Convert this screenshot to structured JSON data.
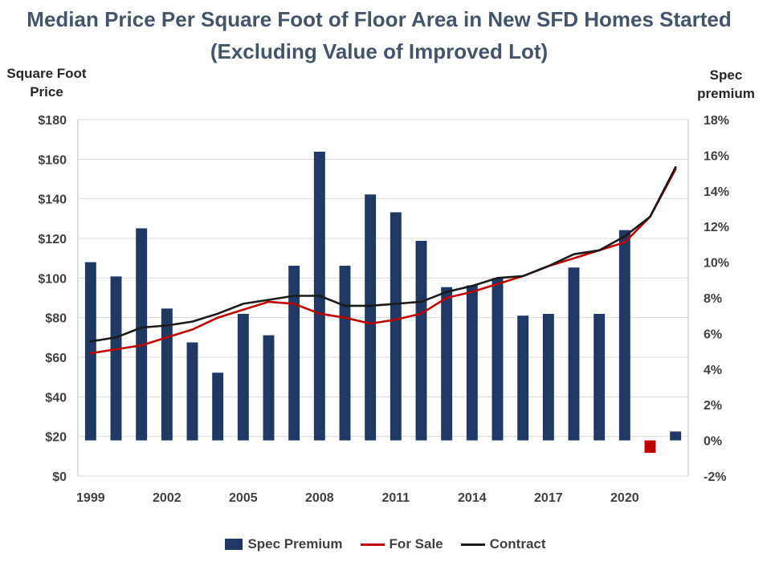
{
  "chart_data": {
    "type": "bar+line",
    "title": "Median Price Per Square Foot of Floor Area in New SFD Homes Started (Excluding Value of Improved Lot)",
    "ylabel_left": "Square Foot Price",
    "ylabel_right": "Spec premium",
    "years": [
      1999,
      2000,
      2001,
      2002,
      2003,
      2004,
      2005,
      2006,
      2007,
      2008,
      2009,
      2010,
      2011,
      2012,
      2013,
      2014,
      2015,
      2016,
      2017,
      2018,
      2019,
      2020,
      2021,
      2022
    ],
    "x_tick_labels": [
      "1999",
      "2002",
      "2005",
      "2008",
      "2011",
      "2014",
      "2017",
      "2020"
    ],
    "y_left": {
      "min": 0,
      "max": 180,
      "step": 20,
      "tick_labels": [
        "$0",
        "$20",
        "$40",
        "$60",
        "$80",
        "$100",
        "$120",
        "$140",
        "$160",
        "$180"
      ]
    },
    "y_right": {
      "min": -2,
      "max": 18,
      "step": 2,
      "tick_labels": [
        "-2%",
        "0%",
        "2%",
        "4%",
        "6%",
        "8%",
        "10%",
        "12%",
        "14%",
        "16%",
        "18%"
      ]
    },
    "gridlines": true,
    "legend_position": "bottom",
    "series": [
      {
        "name": "Spec Premium",
        "type": "bar",
        "axis": "right",
        "color": "#1f3864",
        "negative_color": "#c00000",
        "values": [
          10.0,
          9.2,
          11.9,
          7.4,
          5.5,
          3.8,
          7.1,
          5.9,
          9.8,
          16.2,
          9.8,
          13.8,
          12.8,
          11.2,
          8.6,
          8.7,
          9.1,
          7.0,
          7.1,
          9.7,
          7.1,
          11.8,
          -0.7,
          0.5
        ]
      },
      {
        "name": "For Sale",
        "type": "line",
        "axis": "left",
        "color": "#c00000",
        "values": [
          62,
          64,
          66,
          70,
          74,
          80,
          84,
          88,
          87,
          82,
          80,
          77,
          79,
          82,
          90,
          93,
          97,
          101,
          106,
          110,
          114,
          118,
          131,
          155
        ]
      },
      {
        "name": "Contract",
        "type": "line",
        "axis": "left",
        "color": "#1a1a1a",
        "values": [
          68,
          70,
          75,
          76,
          78,
          82,
          87,
          89,
          91,
          91,
          86,
          86,
          87,
          88,
          93,
          96,
          100,
          101,
          106,
          112,
          114,
          121,
          131,
          156
        ]
      }
    ]
  }
}
